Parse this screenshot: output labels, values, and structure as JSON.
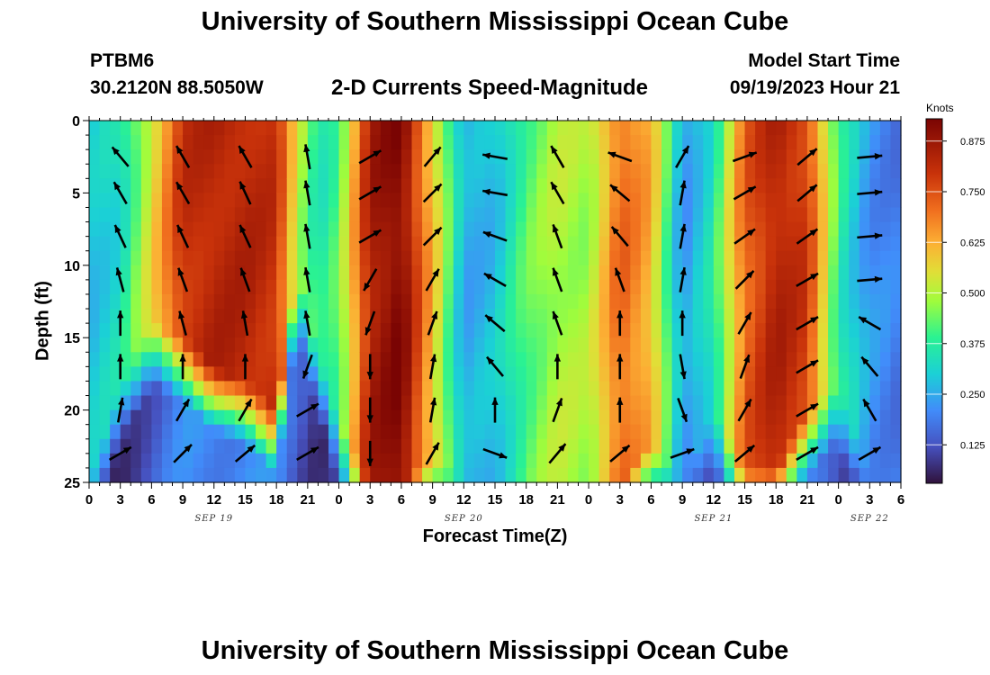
{
  "header": {
    "title": "University of Southern Mississippi Ocean Cube",
    "station": "PTBM6",
    "coords": "30.2120N  88.5050W",
    "subtitle": "2-D Currents Speed-Magnitude",
    "model_start_label": "Model Start Time",
    "model_start_value": "09/19/2023 Hour 21",
    "footer_title": "University of Southern Mississippi Ocean Cube"
  },
  "chart_data": {
    "type": "heatmap",
    "title": "2-D Currents Speed-Magnitude",
    "xlabel": "Forecast Time(Z)",
    "ylabel": "Depth (ft)",
    "x_ticks": [
      "0",
      "3",
      "6",
      "9",
      "12",
      "15",
      "18",
      "21",
      "0",
      "3",
      "6",
      "9",
      "12",
      "15",
      "18",
      "21",
      "0",
      "3",
      "6",
      "9",
      "12",
      "15",
      "18",
      "21",
      "0",
      "3",
      "6"
    ],
    "x_hours_range": [
      0,
      78
    ],
    "date_labels": [
      {
        "label": "SEP 19",
        "hour": 12
      },
      {
        "label": "SEP 20",
        "hour": 36
      },
      {
        "label": "SEP 21",
        "hour": 60
      },
      {
        "label": "SEP 22",
        "hour": 75
      }
    ],
    "y_ticks": [
      0,
      5,
      10,
      15,
      20,
      25
    ],
    "ylim": [
      0,
      25
    ],
    "colorbar": {
      "units": "Knots",
      "range": [
        0.03,
        0.93
      ],
      "ticks": [
        "0.875",
        "0.750",
        "0.625",
        "0.500",
        "0.375",
        "0.250",
        "0.125"
      ],
      "tick_values": [
        0.875,
        0.75,
        0.625,
        0.5,
        0.375,
        0.25,
        0.125
      ]
    },
    "speed_profile": {
      "description": "surface speed (kn) and depth (ft) where speed falls off",
      "times_h": [
        0,
        3,
        6,
        9,
        12,
        15,
        18,
        20,
        22,
        24,
        27,
        30,
        33,
        36,
        39,
        42,
        45,
        48,
        51,
        54,
        57,
        60,
        63,
        66,
        69,
        72,
        75,
        78
      ],
      "surface_kn": [
        0.28,
        0.33,
        0.55,
        0.8,
        0.83,
        0.83,
        0.8,
        0.52,
        0.35,
        0.42,
        0.85,
        0.92,
        0.6,
        0.25,
        0.28,
        0.42,
        0.5,
        0.48,
        0.72,
        0.62,
        0.22,
        0.35,
        0.72,
        0.84,
        0.78,
        0.38,
        0.22,
        0.18
      ],
      "falloff_depth_ft": [
        25,
        18,
        14,
        15,
        17,
        18,
        20,
        10,
        16,
        21,
        25,
        25,
        23,
        25,
        25,
        25,
        25,
        25,
        25,
        22,
        25,
        20,
        24,
        24,
        20,
        18,
        25,
        25
      ]
    },
    "vectors": {
      "times_h": [
        3,
        9,
        15,
        21,
        27,
        33,
        39,
        45,
        51,
        57,
        63,
        69,
        75
      ],
      "depths_ft": [
        2.5,
        5,
        8,
        11,
        14,
        17,
        20,
        23
      ],
      "direction_deg": [
        [
          -40,
          -30,
          -30,
          -10,
          60,
          40,
          -80,
          -30,
          -70,
          30,
          70,
          50,
          85
        ],
        [
          -30,
          -30,
          -25,
          -10,
          60,
          45,
          -80,
          -30,
          -50,
          10,
          60,
          50,
          85
        ],
        [
          -25,
          -25,
          -25,
          -10,
          60,
          45,
          -70,
          -20,
          -40,
          10,
          55,
          55,
          85
        ],
        [
          -15,
          -20,
          -20,
          -10,
          -150,
          30,
          -60,
          -20,
          -20,
          10,
          45,
          60,
          85
        ],
        [
          0,
          -15,
          -10,
          -10,
          -160,
          20,
          -50,
          -20,
          0,
          0,
          30,
          60,
          -60
        ],
        [
          0,
          0,
          0,
          -160,
          180,
          10,
          -40,
          0,
          0,
          170,
          20,
          60,
          -40
        ],
        [
          10,
          30,
          30,
          60,
          180,
          10,
          0,
          20,
          0,
          160,
          30,
          60,
          -30
        ],
        [
          60,
          45,
          50,
          60,
          180,
          30,
          110,
          40,
          50,
          70,
          50,
          60,
          60
        ]
      ]
    }
  }
}
